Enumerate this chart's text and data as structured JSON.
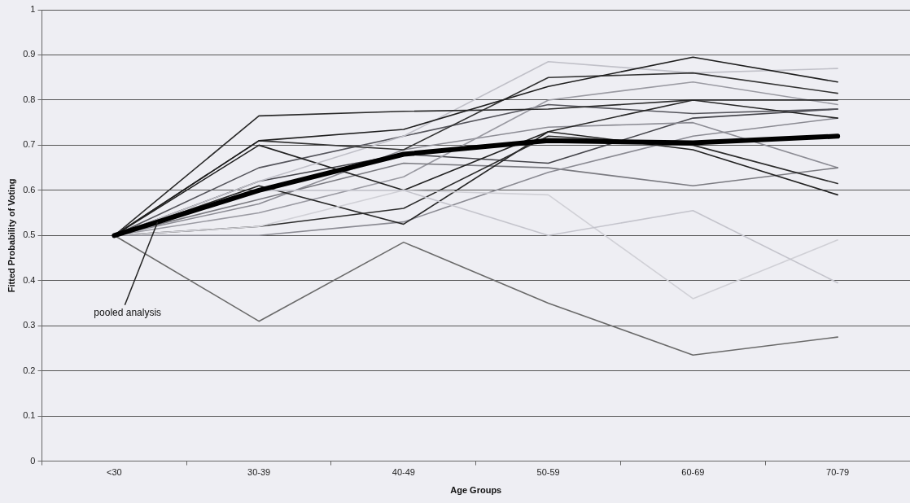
{
  "chart_data": {
    "type": "line",
    "xlabel": "Age Groups",
    "ylabel": "Fitted Probability of Voting",
    "categories": [
      "<30",
      "30-39",
      "40-49",
      "50-59",
      "60-69",
      "70-79"
    ],
    "ylim": [
      0,
      1
    ],
    "yticks": [
      0,
      0.1,
      0.2,
      0.3,
      0.4,
      0.5,
      0.6,
      0.7,
      0.8,
      0.9,
      1
    ],
    "grid": "y",
    "legend": false,
    "marker": "none",
    "line_style": "solid",
    "series": [
      {
        "color": "#6a6a6a",
        "values": [
          0.5,
          0.31,
          0.485,
          0.35,
          0.235,
          0.275
        ]
      },
      {
        "color": "#c4c4cc",
        "values": [
          0.5,
          0.6,
          0.6,
          0.5,
          0.555,
          0.395
        ]
      },
      {
        "color": "#d0d0d6",
        "values": [
          0.5,
          0.52,
          0.6,
          0.59,
          0.36,
          0.49
        ]
      },
      {
        "color": "#2a2a2a",
        "values": [
          0.5,
          0.765,
          0.775,
          0.78,
          0.8,
          0.8
        ]
      },
      {
        "color": "#1e1e1e",
        "values": [
          0.5,
          0.71,
          0.735,
          0.83,
          0.895,
          0.84
        ]
      },
      {
        "color": "#333333",
        "values": [
          0.5,
          0.71,
          0.69,
          0.85,
          0.86,
          0.815
        ]
      },
      {
        "color": "#c0c0c8",
        "values": [
          0.5,
          0.62,
          0.72,
          0.885,
          0.86,
          0.87
        ]
      },
      {
        "color": "#222222",
        "values": [
          0.5,
          0.7,
          0.6,
          0.73,
          0.69,
          0.59
        ]
      },
      {
        "color": "#2c2c2c",
        "values": [
          0.5,
          0.52,
          0.56,
          0.72,
          0.7,
          0.615
        ]
      },
      {
        "color": "#262626",
        "values": [
          0.5,
          0.61,
          0.525,
          0.73,
          0.8,
          0.76
        ]
      },
      {
        "color": "#8a8a92",
        "values": [
          0.5,
          0.5,
          0.53,
          0.64,
          0.72,
          0.76
        ]
      },
      {
        "color": "#7a7a80",
        "values": [
          0.5,
          0.58,
          0.66,
          0.65,
          0.61,
          0.65
        ]
      },
      {
        "color": "#9a9aa2",
        "values": [
          0.5,
          0.55,
          0.63,
          0.8,
          0.84,
          0.79
        ]
      },
      {
        "color": "#55555c",
        "values": [
          0.5,
          0.65,
          0.72,
          0.79,
          0.77,
          0.78
        ]
      },
      {
        "color": "#8c8c94",
        "values": [
          0.5,
          0.57,
          0.69,
          0.74,
          0.75,
          0.65
        ]
      },
      {
        "color": "#44444a",
        "values": [
          0.5,
          0.62,
          0.68,
          0.66,
          0.76,
          0.78
        ]
      },
      {
        "name": "pooled analysis",
        "color": "#000000",
        "values": [
          0.5,
          0.6,
          0.68,
          0.71,
          0.705,
          0.72
        ]
      }
    ]
  }
}
